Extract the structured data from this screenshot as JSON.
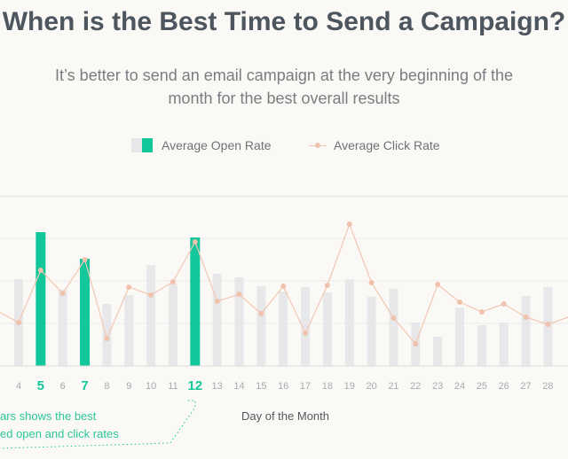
{
  "title": "When is the Best Time to Send a Campaign?",
  "subtitle": "It’s better to send an email campaign at the very beginning of the month for the best overall results",
  "legend": {
    "open_rate": "Average Open Rate",
    "click_rate": "Average Click Rate"
  },
  "callout_lines": [
    "ars shows the best",
    "ed open and click rates"
  ],
  "colors": {
    "bar": "#e8e8ea",
    "highlight": "#12c79a",
    "click_line": "#f2c7b3",
    "click_point": "#f0c2ad",
    "grid": "#ececea",
    "tick": "#a7abaf"
  },
  "chart_data": {
    "type": "bar",
    "categories": [
      "4",
      "5",
      "6",
      "7",
      "8",
      "9",
      "10",
      "11",
      "12",
      "13",
      "14",
      "15",
      "16",
      "17",
      "18",
      "19",
      "20",
      "21",
      "22",
      "23",
      "24",
      "25",
      "26",
      "27",
      "28"
    ],
    "highlighted": [
      "5",
      "7",
      "12"
    ],
    "xlabel": "Day of the Month",
    "series": [
      {
        "name": "Average Open Rate",
        "type": "bar",
        "values": [
          98,
          151,
          86,
          121,
          70,
          80,
          114,
          93,
          145,
          104,
          100,
          90,
          84,
          89,
          83,
          98,
          78,
          87,
          49,
          33,
          66,
          46,
          49,
          79,
          89
        ]
      },
      {
        "name": "Average Click Rate",
        "type": "line",
        "values": [
          49,
          108,
          82,
          120,
          31,
          89,
          80,
          95,
          140,
          73,
          81,
          59,
          90,
          37,
          91,
          160,
          94,
          54,
          25,
          92,
          72,
          61,
          70,
          55,
          47
        ]
      }
    ],
    "ylim": [
      0,
      200
    ]
  }
}
